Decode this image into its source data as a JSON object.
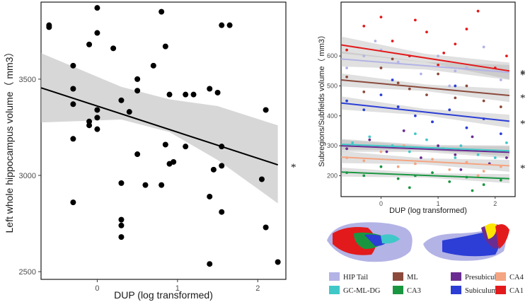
{
  "chart_data": [
    {
      "type": "scatter",
      "title": "",
      "xlabel": "DUP (log transformed)",
      "ylabel": "Left whole hippocampus volume（ mm3）",
      "x_ticks": [
        0,
        1,
        2
      ],
      "y_ticks": [
        2500,
        3000,
        3500
      ],
      "xlim": [
        -0.7,
        2.35
      ],
      "ylim": [
        2460,
        3900
      ],
      "points": [
        [
          -0.6,
          3780
        ],
        [
          -0.6,
          3770
        ],
        [
          -0.3,
          3570
        ],
        [
          -0.3,
          3450
        ],
        [
          -0.3,
          3370
        ],
        [
          -0.3,
          3190
        ],
        [
          -0.3,
          2860
        ],
        [
          -0.1,
          3680
        ],
        [
          -0.1,
          3280
        ],
        [
          -0.1,
          3260
        ],
        [
          0,
          3870
        ],
        [
          0,
          3740
        ],
        [
          0,
          3340
        ],
        [
          0,
          3300
        ],
        [
          0,
          3240
        ],
        [
          0.2,
          3660
        ],
        [
          0.3,
          3390
        ],
        [
          0.3,
          2960
        ],
        [
          0.3,
          2770
        ],
        [
          0.3,
          2740
        ],
        [
          0.3,
          2680
        ],
        [
          0.4,
          3330
        ],
        [
          0.5,
          3500
        ],
        [
          0.5,
          3440
        ],
        [
          0.5,
          3110
        ],
        [
          0.6,
          2950
        ],
        [
          0.7,
          3570
        ],
        [
          0.8,
          3850
        ],
        [
          0.8,
          2950
        ],
        [
          0.85,
          3670
        ],
        [
          0.85,
          3160
        ],
        [
          0.9,
          3420
        ],
        [
          0.9,
          3060
        ],
        [
          0.95,
          3070
        ],
        [
          1.1,
          3420
        ],
        [
          1.1,
          3150
        ],
        [
          1.2,
          3420
        ],
        [
          1.4,
          3450
        ],
        [
          1.4,
          2890
        ],
        [
          1.4,
          2540
        ],
        [
          1.45,
          3030
        ],
        [
          1.5,
          3430
        ],
        [
          1.55,
          3780
        ],
        [
          1.55,
          3150
        ],
        [
          1.55,
          3050
        ],
        [
          1.55,
          2810
        ],
        [
          1.65,
          3780
        ],
        [
          2.05,
          2980
        ],
        [
          2.1,
          3340
        ],
        [
          2.1,
          2730
        ],
        [
          2.25,
          2550
        ]
      ],
      "regression": {
        "x0": -0.7,
        "y0": 3455,
        "x1": 2.25,
        "y1": 3055
      },
      "ci_band": {
        "x": [
          -0.7,
          0.3,
          0.9,
          1.5,
          2.25
        ],
        "lower": [
          3275,
          3290,
          3225,
          3080,
          2855
        ],
        "upper": [
          3635,
          3460,
          3395,
          3360,
          3260
        ]
      },
      "annotation": "*"
    },
    {
      "type": "scatter",
      "title": "",
      "xlabel": "DUP (log transformed)",
      "ylabel": "Subregions/Subfields volume（ mm3）",
      "x_ticks": [
        0,
        1,
        2
      ],
      "y_ticks": [
        200,
        300,
        400,
        500,
        600
      ],
      "xlim": [
        -0.7,
        2.35
      ],
      "ylim": [
        130,
        780
      ],
      "series": [
        {
          "name": "HIP Tail",
          "color": "#b3b3e6",
          "line": [
            590,
            545
          ],
          "band": 25,
          "points": [
            [
              -0.6,
              560
            ],
            [
              -0.3,
              600
            ],
            [
              0,
              620
            ],
            [
              0.3,
              580
            ],
            [
              0.7,
              540
            ],
            [
              1,
              600
            ],
            [
              1.3,
              550
            ],
            [
              1.5,
              560
            ],
            [
              1.8,
              630
            ],
            [
              2.1,
              520
            ],
            [
              -0.1,
              650
            ],
            [
              1.2,
              500
            ]
          ],
          "significant": true
        },
        {
          "name": "ML",
          "color": "#8b4a3c",
          "line": [
            520,
            468
          ],
          "band": 22,
          "points": [
            [
              -0.6,
              530
            ],
            [
              -0.3,
              480
            ],
            [
              0,
              560
            ],
            [
              0.3,
              510
            ],
            [
              0.5,
              490
            ],
            [
              0.8,
              470
            ],
            [
              1,
              540
            ],
            [
              1.3,
              460
            ],
            [
              1.5,
              500
            ],
            [
              1.8,
              450
            ],
            [
              2.1,
              430
            ],
            [
              0.2,
              590
            ]
          ],
          "significant": true
        },
        {
          "name": "Presubiculum",
          "color": "#6b2c91",
          "line": [
            300,
            278
          ],
          "band": 20,
          "points": [
            [
              -0.6,
              290
            ],
            [
              -0.2,
              320
            ],
            [
              0.1,
              280
            ],
            [
              0.4,
              350
            ],
            [
              0.7,
              260
            ],
            [
              1,
              300
            ],
            [
              1.3,
              270
            ],
            [
              1.6,
              330
            ],
            [
              1.9,
              240
            ],
            [
              2.2,
              260
            ],
            [
              0.9,
              380
            ],
            [
              1.4,
              220
            ]
          ],
          "significant": false
        },
        {
          "name": "CA4",
          "color": "#f4a582",
          "line": [
            262,
            233
          ],
          "band": 20,
          "points": [
            [
              -0.6,
              260
            ],
            [
              -0.3,
              250
            ],
            [
              0,
              280
            ],
            [
              0.3,
              230
            ],
            [
              0.6,
              240
            ],
            [
              0.9,
              255
            ],
            [
              1.2,
              220
            ],
            [
              1.5,
              245
            ],
            [
              1.8,
              215
            ],
            [
              2.1,
              230
            ],
            [
              0.4,
              300
            ],
            [
              1.7,
              200
            ]
          ],
          "significant": true
        },
        {
          "name": "GC-ML-DG",
          "color": "#40c8c8",
          "line": [
            305,
            283
          ],
          "band": 18,
          "points": [
            [
              -0.5,
              310
            ],
            [
              -0.2,
              330
            ],
            [
              0.2,
              300
            ],
            [
              0.5,
              280
            ],
            [
              0.8,
              320
            ],
            [
              1.1,
              290
            ],
            [
              1.4,
              300
            ],
            [
              1.7,
              270
            ],
            [
              2,
              260
            ],
            [
              2.2,
              310
            ],
            [
              0.6,
              340
            ],
            [
              1.3,
              260
            ]
          ],
          "significant": false
        },
        {
          "name": "CA3",
          "color": "#1a9641",
          "line": [
            212,
            190
          ],
          "band": 15,
          "points": [
            [
              -0.6,
              210
            ],
            [
              -0.3,
              200
            ],
            [
              0,
              230
            ],
            [
              0.3,
              190
            ],
            [
              0.6,
              200
            ],
            [
              0.9,
              210
            ],
            [
              1.2,
              180
            ],
            [
              1.5,
              195
            ],
            [
              1.8,
              170
            ],
            [
              2.1,
              185
            ],
            [
              0.5,
              160
            ],
            [
              1.6,
              150
            ]
          ],
          "significant": false
        },
        {
          "name": "Subiculum",
          "color": "#2c3ed6",
          "line": [
            443,
            382
          ],
          "band": 22,
          "points": [
            [
              -0.6,
              450
            ],
            [
              -0.3,
              420
            ],
            [
              0,
              470
            ],
            [
              0.3,
              430
            ],
            [
              0.6,
              400
            ],
            [
              0.9,
              380
            ],
            [
              1.2,
              420
            ],
            [
              1.5,
              360
            ],
            [
              1.8,
              390
            ],
            [
              2.1,
              340
            ],
            [
              0.2,
              520
            ],
            [
              1.3,
              500
            ]
          ],
          "significant": true
        },
        {
          "name": "CA1",
          "color": "#e31a1c",
          "line": [
            637,
            550
          ],
          "band": 28,
          "points": [
            [
              -0.6,
              620
            ],
            [
              -0.3,
              700
            ],
            [
              0,
              730
            ],
            [
              0.2,
              650
            ],
            [
              0.5,
              600
            ],
            [
              0.8,
              680
            ],
            [
              1,
              570
            ],
            [
              1.3,
              640
            ],
            [
              1.5,
              690
            ],
            [
              1.7,
              750
            ],
            [
              2,
              560
            ],
            [
              2.2,
              600
            ],
            [
              0.6,
              720
            ],
            [
              1.1,
              610
            ]
          ],
          "significant": true
        }
      ],
      "annotation": "*"
    }
  ],
  "legend": [
    {
      "label": "HIP Tail",
      "color": "#b3b3e6"
    },
    {
      "label": "GC-ML-DG",
      "color": "#40c8c8"
    },
    {
      "label": "ML",
      "color": "#8b4a3c"
    },
    {
      "label": "CA3",
      "color": "#1a9641"
    },
    {
      "label": "Presubiculum",
      "color": "#6b2c91"
    },
    {
      "label": "Subiculum",
      "color": "#2c3ed6"
    },
    {
      "label": "CA4",
      "color": "#f4a582"
    },
    {
      "label": "CA1",
      "color": "#e31a1c"
    }
  ],
  "brain_image_icon": "hippocampus-3d-render-icon"
}
